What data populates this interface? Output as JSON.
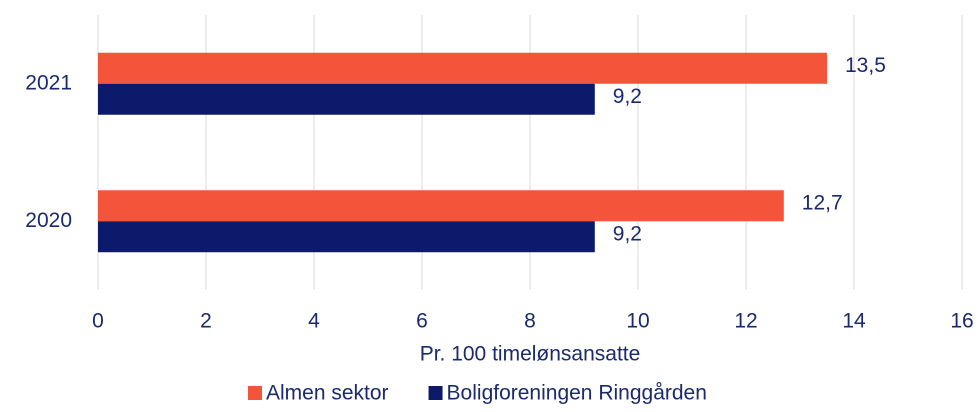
{
  "chart_data": {
    "type": "hbar",
    "categories": [
      "2021",
      "2020"
    ],
    "series": [
      {
        "name": "Almen sektor",
        "color": "#f4553a",
        "values": [
          13.5,
          12.7
        ],
        "value_labels": [
          "13,5",
          "12,7"
        ]
      },
      {
        "name": "Boligforeningen Ringgården",
        "color": "#0c1a6b",
        "values": [
          9.2,
          9.2
        ],
        "value_labels": [
          "9,2",
          "9,2"
        ]
      }
    ],
    "xlabel": "Pr. 100 timelønsansatte",
    "xlim": [
      0,
      16
    ],
    "xticks": [
      0,
      2,
      4,
      6,
      8,
      10,
      12,
      14,
      16
    ],
    "grid": true,
    "legend": "bottom"
  }
}
